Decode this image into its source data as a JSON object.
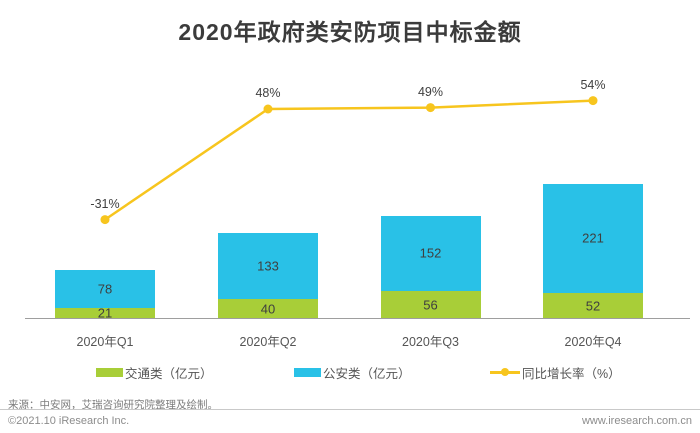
{
  "title": "2020年政府类安防项目中标金额",
  "chart_data": {
    "type": "stacked-bar+line",
    "title": "2020年政府类安防项目中标金额",
    "categories": [
      "2020年Q1",
      "2020年Q2",
      "2020年Q3",
      "2020年Q4"
    ],
    "bar_series": [
      {
        "name": "交通类（亿元）",
        "color": "#a8ce38",
        "values": [
          21,
          40,
          56,
          52
        ]
      },
      {
        "name": "公安类（亿元）",
        "color": "#29c1e7",
        "values": [
          78,
          133,
          152,
          221
        ]
      }
    ],
    "stack_totals": [
      99,
      173,
      208,
      273
    ],
    "line_series": {
      "name": "同比增长率（%）",
      "color": "#f7c51e",
      "values_pct": [
        -31,
        48,
        49,
        54
      ],
      "point_labels": [
        "-31%",
        "48%",
        "49%",
        "54%"
      ]
    },
    "value_labels_shown": true,
    "gridlines": false,
    "legend_position": "bottom",
    "axes": {
      "y_axis_visible": false,
      "x_baseline_color": "#9e9e9e"
    }
  },
  "legend": {
    "traffic_label": "交通类（亿元）",
    "police_label": "公安类（亿元）",
    "growth_label": "同比增长率（%）"
  },
  "footer": {
    "source": "来源：中安网，艾瑞咨询研究院整理及绘制。",
    "copyright": "©2021.10 iResearch Inc.",
    "website": "www.iresearch.com.cn"
  },
  "colors": {
    "traffic_green": "#a8ce38",
    "police_blue": "#29c1e7",
    "growth_yellow": "#f7c51e",
    "title_text": "#3b3b3b",
    "axis_gray": "#9e9e9e"
  }
}
